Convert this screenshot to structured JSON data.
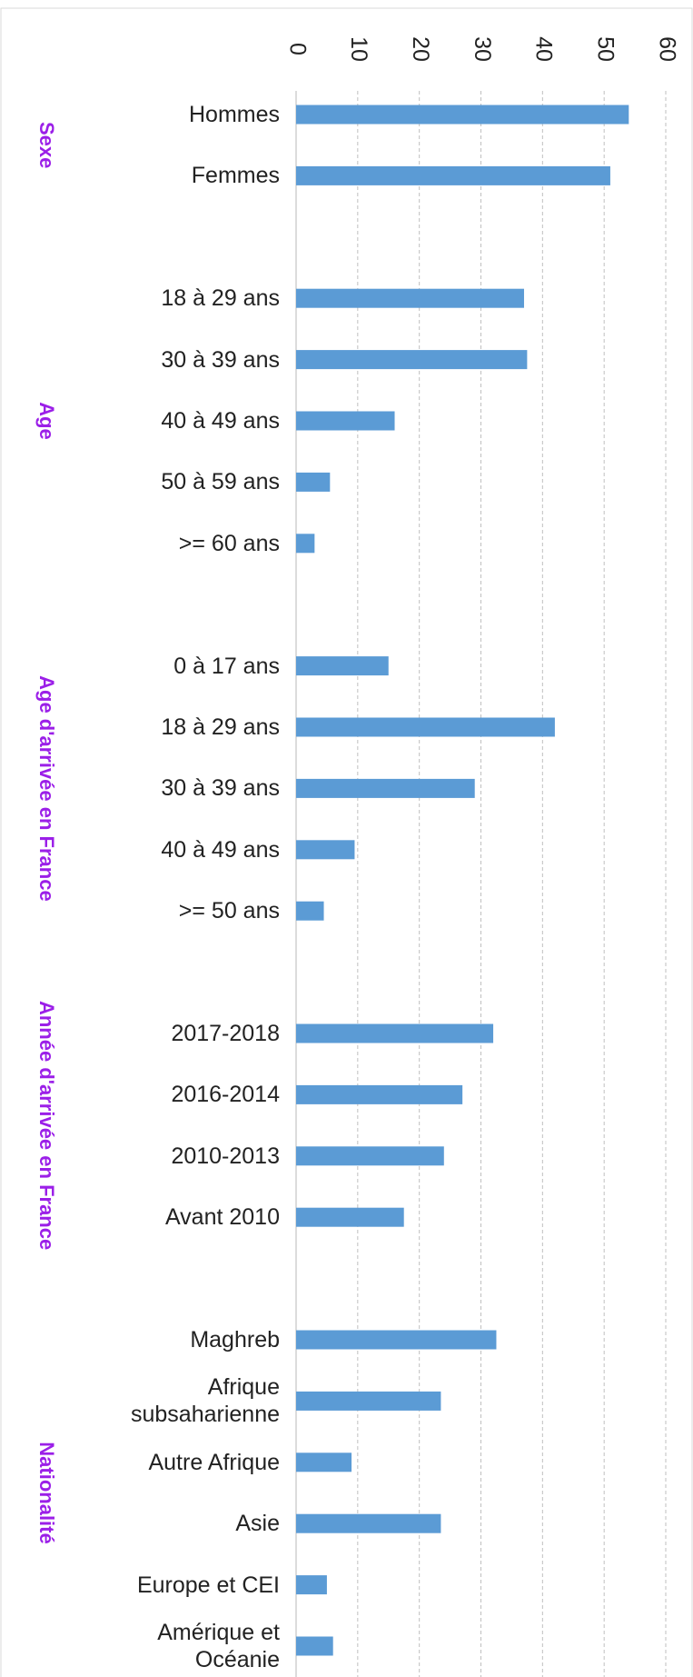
{
  "chart_data": {
    "type": "bar",
    "color": "#5b9bd5",
    "xlim": [
      0,
      60
    ],
    "xticks": [
      0,
      10,
      20,
      30,
      40,
      50,
      60
    ],
    "grid": true,
    "groups": [
      {
        "name": "Sexe",
        "categories": [
          "Hommes",
          "Femmes"
        ],
        "values": [
          54,
          51
        ]
      },
      {
        "name": "Age",
        "categories": [
          "18 à 29 ans",
          "30 à 39 ans",
          "40 à 49 ans",
          "50 à 59 ans",
          ">= 60 ans"
        ],
        "values": [
          37,
          37.5,
          16,
          5.5,
          3
        ]
      },
      {
        "name": "Age d'arrivée en France",
        "categories": [
          "0 à 17 ans",
          "18 à 29 ans",
          "30 à 39 ans",
          "40 à 49 ans",
          ">= 50 ans"
        ],
        "values": [
          15,
          42,
          29,
          9.5,
          4.5
        ]
      },
      {
        "name": "Année d'arrivée en France",
        "categories": [
          "2017-2018",
          "2016-2014",
          "2010-2013",
          "Avant 2010"
        ],
        "values": [
          32,
          27,
          24,
          17.5
        ]
      },
      {
        "name": "Nationalité",
        "categories": [
          "Maghreb",
          "Afrique\nsubsaharienne",
          "Autre Afrique",
          "Asie",
          "Europe et CEI",
          "Amérique et\nOcéanie"
        ],
        "values": [
          32.5,
          23.5,
          9,
          23.5,
          5,
          6
        ]
      }
    ]
  }
}
